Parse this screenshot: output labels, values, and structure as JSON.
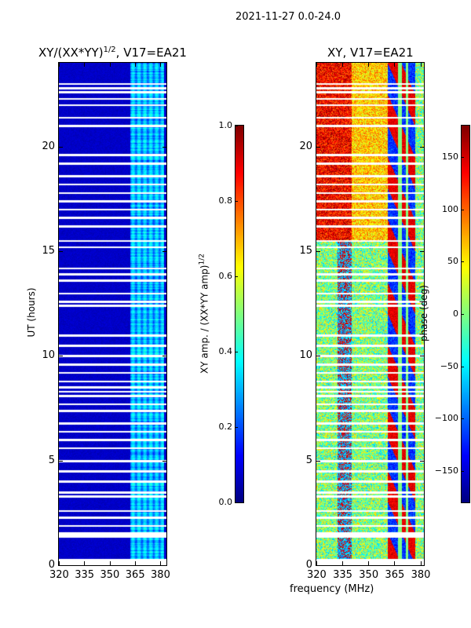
{
  "chart_data": [
    {
      "type": "heatmap",
      "suptitle": "2021-11-27 0.0-24.0",
      "title": "XY/(XX*YY)",
      "title_sup": "1/2",
      "title_suffix": ", V17=EA21",
      "xlabel": "",
      "ylabel": "UT (hours)",
      "xlim": [
        320,
        383.7
      ],
      "ylim": [
        0,
        24
      ],
      "xticks": [
        "320",
        "335",
        "350",
        "365",
        "380"
      ],
      "xtick_values": [
        320,
        335,
        350,
        365,
        380
      ],
      "yticks": [
        "0",
        "5",
        "10",
        "15",
        "20"
      ],
      "ytick_values": [
        0,
        5,
        10,
        15,
        20
      ],
      "colormap": "jet",
      "colorbar": {
        "label": "XY amp. / (XX*YY amp)",
        "label_sup": "1/2",
        "range": [
          0,
          1
        ],
        "ticks": [
          "0.0",
          "0.2",
          "0.4",
          "0.6",
          "0.8",
          "1.0"
        ],
        "tick_values": [
          0,
          0.2,
          0.4,
          0.6,
          0.8,
          1.0
        ]
      },
      "background_value": 0.05,
      "high_band_mhz": [
        362,
        382
      ],
      "high_band_value": 0.3
    },
    {
      "type": "heatmap",
      "title": "XY, V17=EA21",
      "xlabel": "frequency (MHz)",
      "ylabel": "",
      "xlim": [
        320,
        382
      ],
      "ylim": [
        0,
        24
      ],
      "xticks": [
        "320",
        "335",
        "350",
        "365",
        "380"
      ],
      "xtick_values": [
        320,
        335,
        350,
        365,
        380
      ],
      "yticks": [
        "0",
        "5",
        "10",
        "15",
        "20"
      ],
      "ytick_values": [
        0,
        5,
        10,
        15,
        20
      ],
      "colormap": "jet",
      "colorbar": {
        "label": "phase (deg)",
        "range": [
          -180,
          180
        ],
        "ticks": [
          "−150",
          "−100",
          "−50",
          "0",
          "50",
          "100",
          "150"
        ],
        "tick_values": [
          -150,
          -100,
          -50,
          0,
          50,
          100,
          150
        ]
      }
    }
  ],
  "flagged_ut_hours": [
    0.0,
    0.25,
    1.4,
    1.5,
    1.55,
    1.9,
    2.3,
    2.6,
    3.3,
    3.5,
    4.0,
    4.5,
    5.0,
    5.6,
    6.0,
    6.4,
    6.8,
    7.4,
    7.7,
    8.1,
    8.3,
    8.5,
    8.8,
    9.2,
    9.6,
    10.0,
    10.5,
    11.0,
    12.4,
    12.6,
    13.0,
    13.6,
    13.9,
    14.2,
    15.2,
    15.5,
    16.2,
    16.6,
    17.0,
    17.4,
    17.8,
    18.2,
    18.6,
    19.2,
    19.6,
    21.0,
    21.4,
    22.0,
    22.3,
    22.6,
    22.8,
    23.0
  ]
}
